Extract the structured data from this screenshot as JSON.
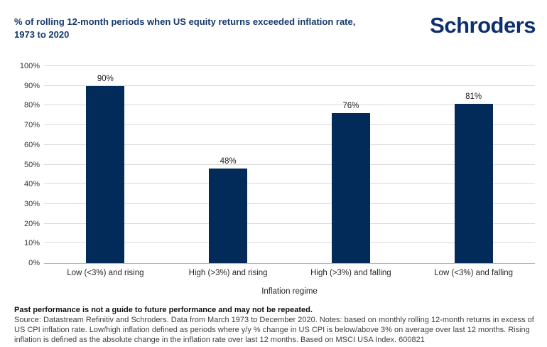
{
  "header": {
    "title_line1": "% of rolling 12-month periods when US equity returns exceeded inflation rate,",
    "title_line2": "1973 to 2020",
    "logo": "Schroders"
  },
  "chart_data": {
    "type": "bar",
    "title": "% of rolling 12-month periods when US equity returns exceeded inflation rate, 1973 to 2020",
    "categories": [
      "Low (<3%) and rising",
      "High (>3%) and rising",
      "High (>3%) and falling",
      "Low (<3%) and falling"
    ],
    "values": [
      90,
      48,
      76,
      81
    ],
    "value_labels": [
      "90%",
      "48%",
      "76%",
      "81%"
    ],
    "xlabel": "Inflation regime",
    "ylabel": "",
    "ylim": [
      0,
      100
    ],
    "y_tick_step": 10,
    "y_tick_labels": [
      "0%",
      "10%",
      "20%",
      "30%",
      "40%",
      "50%",
      "60%",
      "70%",
      "80%",
      "90%",
      "100%"
    ],
    "grid": true,
    "legend": "none"
  },
  "footer": {
    "disclaimer": "Past performance is not a guide to future performance and may not be repeated.",
    "source": "Source: Datastream Refinitiv and Schroders. Data from March 1973 to December 2020. Notes: based on monthly rolling 12-month returns in excess of US CPI inflation rate. Low/high inflation defined as periods where y/y % change in US CPI is below/above 3% on average over last 12 months. Rising inflation is defined as the absolute change in the inflation rate over last 12 months. Based on MSCI USA Index. 600821"
  },
  "colors": {
    "title_blue": "#16386d",
    "logo_blue": "#0e2f6d",
    "bar_navy": "#032b5a",
    "gridline": "#d9d9d9",
    "baseline": "#b3b3b3",
    "tick_text": "#333333"
  }
}
